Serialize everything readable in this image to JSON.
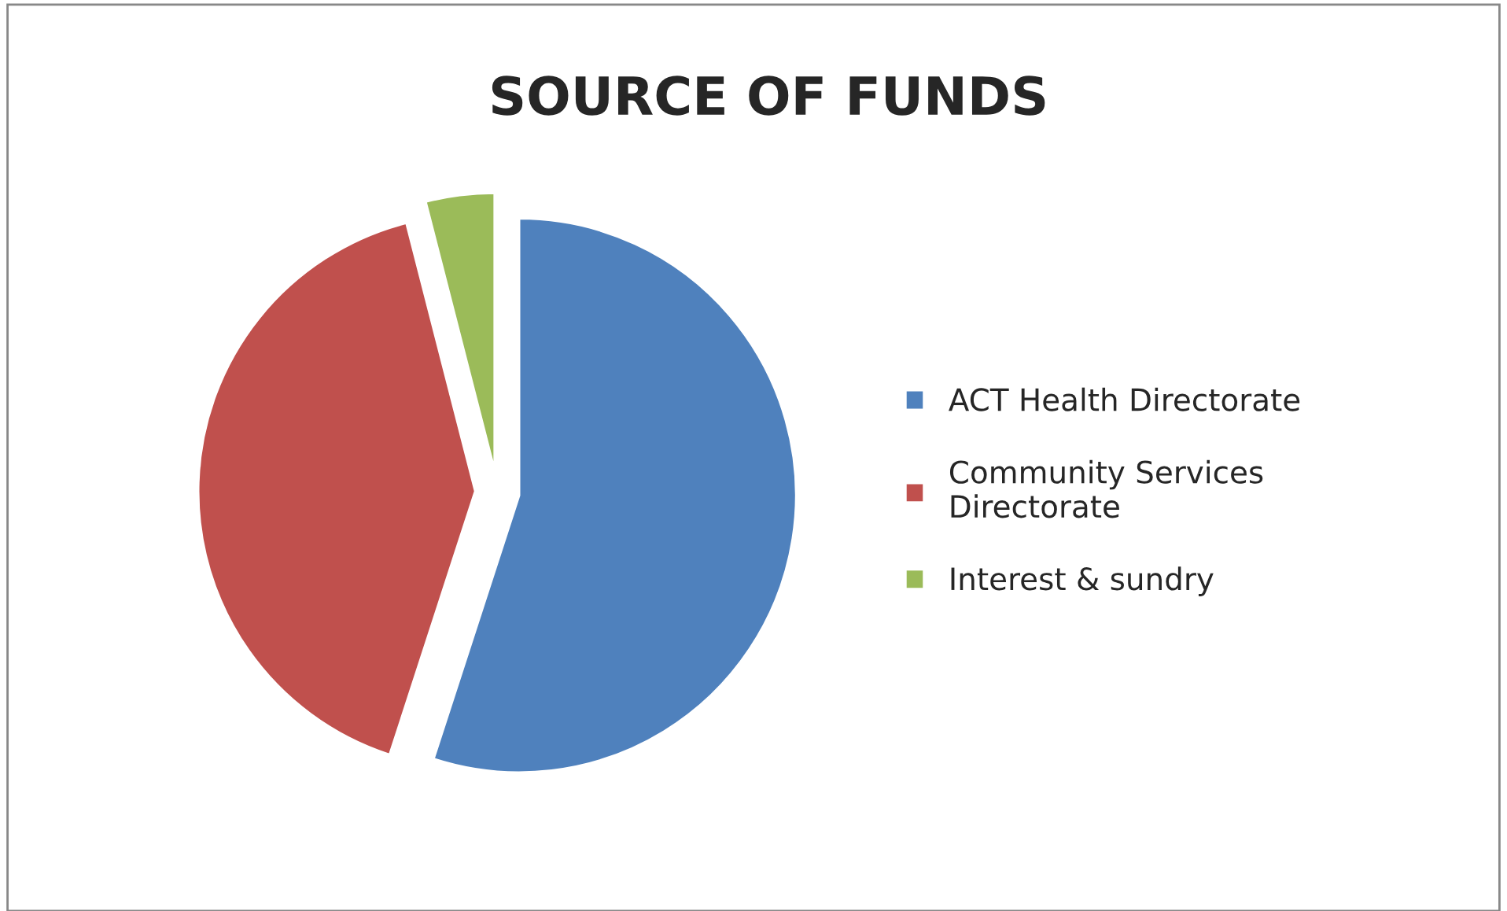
{
  "chart_data": {
    "type": "pie",
    "title": "SOURCE OF FUNDS",
    "categories": [
      "ACT Health Directorate",
      "Community Services\nDirectorate",
      "Interest & sundry"
    ],
    "values": [
      55,
      41,
      4
    ],
    "colors": [
      "#4f81bd",
      "#c0504d",
      "#9bbb59"
    ],
    "legend": "right"
  }
}
